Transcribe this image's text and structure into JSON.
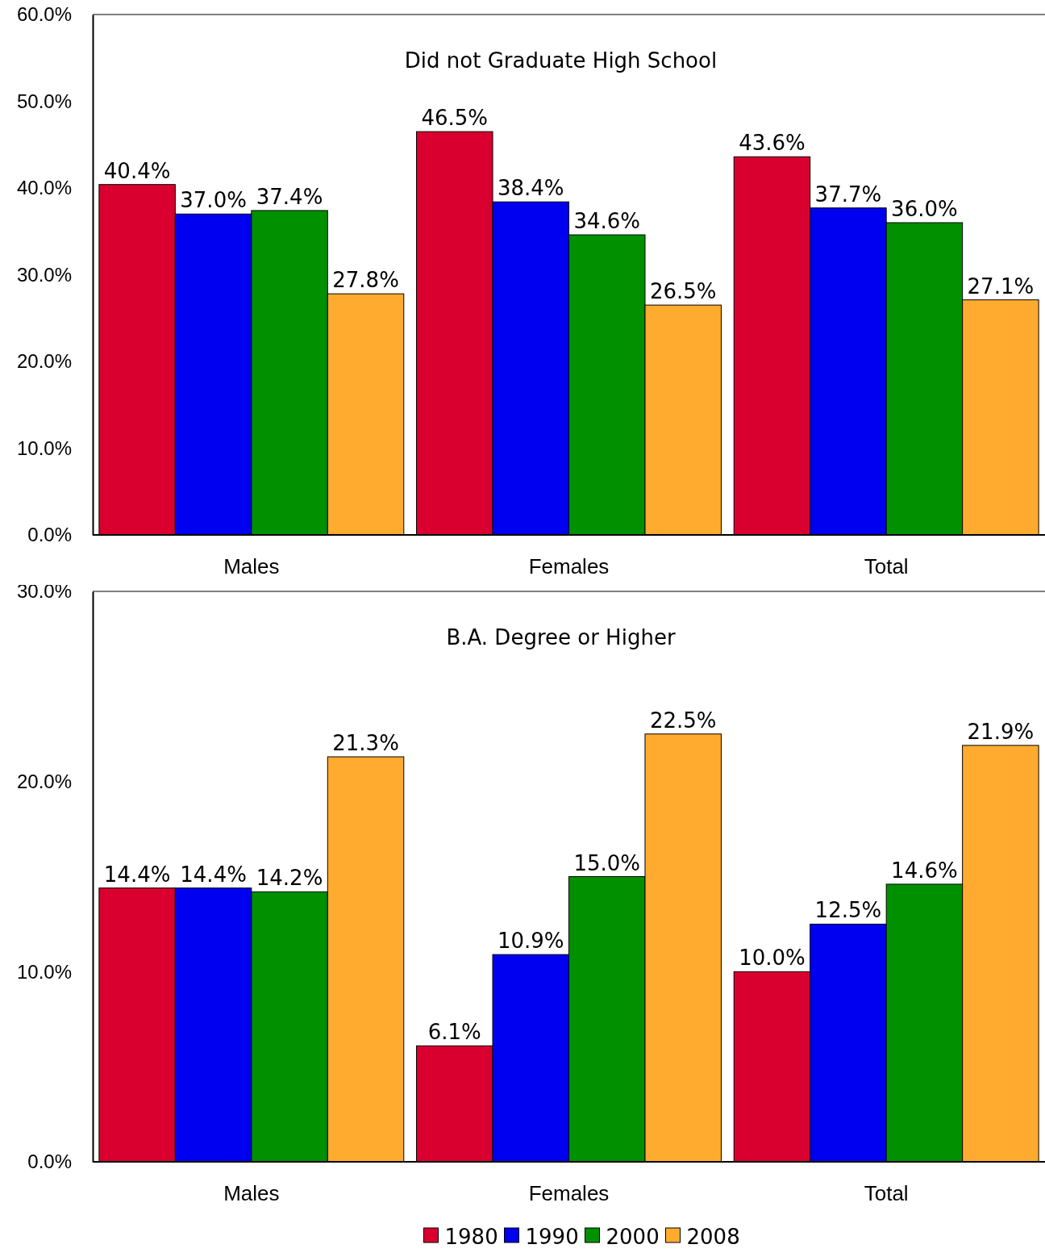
{
  "chart_data": [
    {
      "type": "bar",
      "title": "Did not Graduate High School",
      "categories": [
        "Males",
        "Females",
        "Total"
      ],
      "series": [
        {
          "color": "#d9002f",
          "values": [
            40.4,
            46.5,
            43.6
          ],
          "value_labels": [
            "40.4%",
            "46.5%",
            "43.6%"
          ]
        },
        {
          "color": "#0000f0",
          "values": [
            37.0,
            38.4,
            37.7
          ],
          "value_labels": [
            "37.0%",
            "38.4%",
            "37.7%"
          ]
        },
        {
          "color": "#009000",
          "values": [
            37.4,
            34.6,
            36.0
          ],
          "value_labels": [
            "37.4%",
            "34.6%",
            "36.0%"
          ]
        },
        {
          "color": "#ffab2f",
          "values": [
            27.8,
            26.5,
            27.1
          ],
          "value_labels": [
            "27.8%",
            "26.5%",
            "27.1%"
          ]
        }
      ],
      "ylim": [
        0,
        60
      ],
      "yticks": [
        {
          "value": 0,
          "label": "0.0%"
        },
        {
          "value": 10,
          "label": "10.0%"
        },
        {
          "value": 20,
          "label": "20.0%"
        },
        {
          "value": 30,
          "label": "30.0%"
        },
        {
          "value": 40,
          "label": "40.0%"
        },
        {
          "value": 50,
          "label": "50.0%"
        },
        {
          "value": 60,
          "label": "60.0%"
        }
      ],
      "grid": false,
      "legend": false
    },
    {
      "type": "bar",
      "title": "B.A. Degree or Higher",
      "categories": [
        "Males",
        "Females",
        "Total"
      ],
      "series": [
        {
          "name": "1980",
          "color": "#d9002f",
          "values": [
            14.4,
            6.1,
            10.0
          ],
          "value_labels": [
            "14.4%",
            "6.1%",
            "10.0%"
          ]
        },
        {
          "name": "1990",
          "color": "#0000f0",
          "values": [
            14.4,
            10.9,
            12.5
          ],
          "value_labels": [
            "14.4%",
            "10.9%",
            "12.5%"
          ]
        },
        {
          "name": "2000",
          "color": "#009000",
          "values": [
            14.2,
            15.0,
            14.6
          ],
          "value_labels": [
            "14.2%",
            "15.0%",
            "14.6%"
          ]
        },
        {
          "name": "2008",
          "color": "#ffab2f",
          "values": [
            21.3,
            22.5,
            21.9
          ],
          "value_labels": [
            "21.3%",
            "22.5%",
            "21.9%"
          ]
        }
      ],
      "ylim": [
        0,
        30
      ],
      "yticks": [
        {
          "value": 0,
          "label": "0.0%"
        },
        {
          "value": 10,
          "label": "10.0%"
        },
        {
          "value": 20,
          "label": "20.0%"
        },
        {
          "value": 30,
          "label": "30.0%"
        }
      ],
      "grid": false,
      "legend": "bottom"
    }
  ]
}
